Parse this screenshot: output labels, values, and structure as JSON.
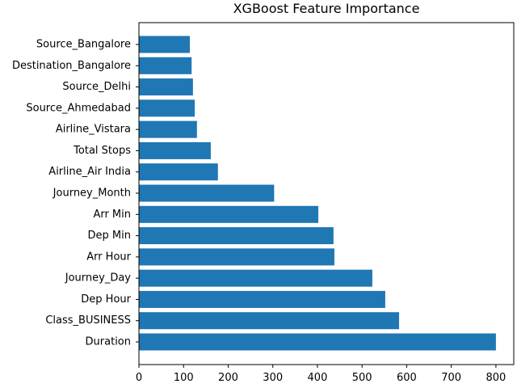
{
  "chart_data": {
    "type": "bar",
    "orientation": "horizontal",
    "title": "XGBoost Feature Importance",
    "xlabel": "",
    "ylabel": "",
    "categories": [
      "Duration",
      "Class_BUSINESS",
      "Dep Hour",
      "Journey_Day",
      "Arr Hour",
      "Dep Min",
      "Arr Min",
      "Journey_Month",
      "Airline_Air India",
      "Total Stops",
      "Airline_Vistara",
      "Source_Ahmedabad",
      "Source_Delhi",
      "Destination_Bangalore",
      "Source_Bangalore"
    ],
    "values": [
      800,
      583,
      552,
      523,
      438,
      436,
      402,
      303,
      177,
      161,
      130,
      125,
      121,
      118,
      114
    ],
    "xlim": [
      0,
      840
    ],
    "xticks": [
      "0",
      "100",
      "200",
      "300",
      "400",
      "500",
      "600",
      "700",
      "800"
    ],
    "bar_color": "#1f77b4",
    "grid": false,
    "legend": "none"
  }
}
